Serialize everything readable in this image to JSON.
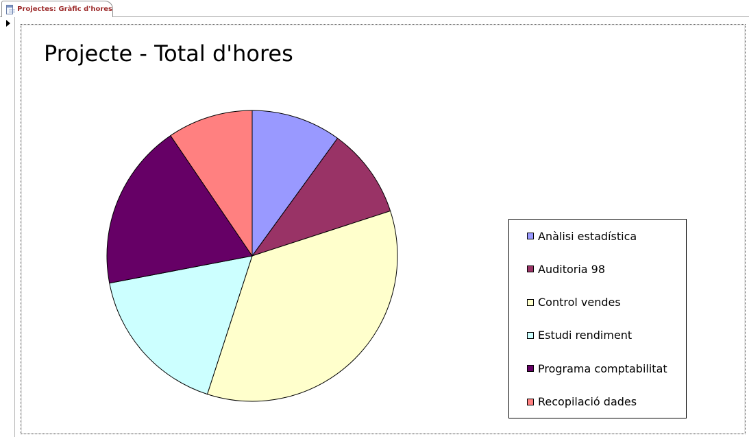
{
  "tab": {
    "label": "Projectes: Gràfic d'hores",
    "icon": "form-icon"
  },
  "chart_data": {
    "type": "pie",
    "title": "Projecte - Total d'hores",
    "categories": [
      "Anàlisi estadística",
      "Auditoria 98",
      "Control vendes",
      "Estudi rendiment",
      "Programa comptabilitat",
      "Recopilació dades"
    ],
    "values": [
      10,
      10,
      35,
      17,
      18.5,
      9.5
    ],
    "colors": [
      "#9999ff",
      "#993366",
      "#ffffcc",
      "#ccffff",
      "#660066",
      "#ff8080"
    ],
    "start_angle": "12 o'clock",
    "direction": "clockwise",
    "legend_position": "right",
    "legend": [
      "Anàlisi estadística",
      "Auditoria 98",
      "Control vendes",
      "Estudi rendiment",
      "Programa comptabilitat",
      "Recopilació dades"
    ]
  }
}
